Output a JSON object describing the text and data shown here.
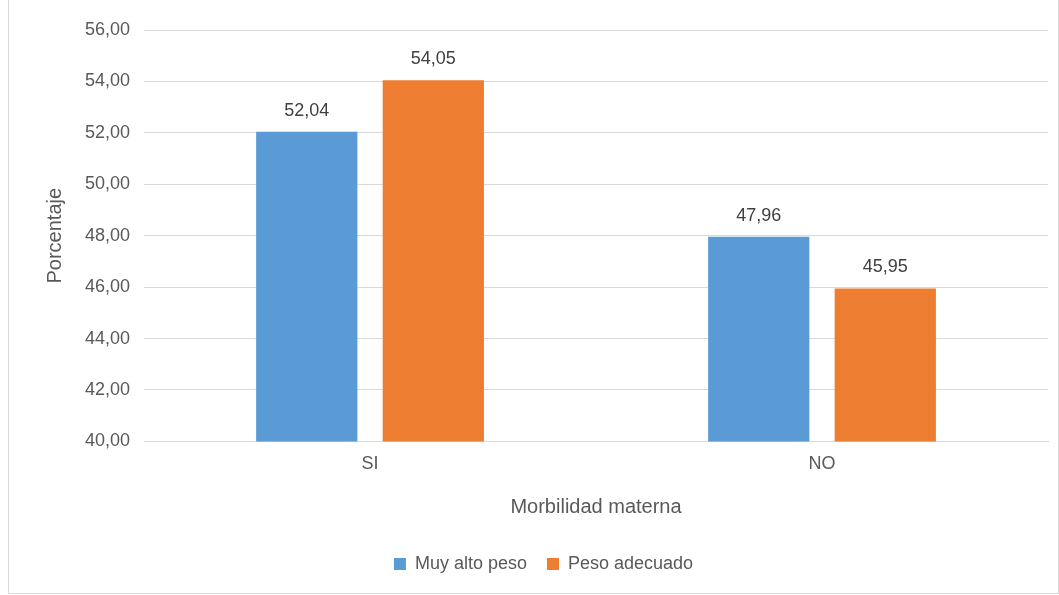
{
  "chart_data": {
    "type": "bar",
    "xlabel": "Morbilidad materna",
    "ylabel": "Porcentaje",
    "categories": [
      "SI",
      "NO"
    ],
    "series": [
      {
        "name": "Muy alto peso",
        "color": "#5b9bd5",
        "values": [
          52.04,
          47.96
        ],
        "value_labels": [
          "52,04",
          "47,96"
        ]
      },
      {
        "name": "Peso adecuado",
        "color": "#ed7d31",
        "values": [
          54.05,
          45.95
        ],
        "value_labels": [
          "54,05",
          "45,95"
        ]
      }
    ],
    "ylim": [
      40,
      56
    ],
    "yticks": [
      {
        "value": 40,
        "label": "40,00"
      },
      {
        "value": 42,
        "label": "42,00"
      },
      {
        "value": 44,
        "label": "44,00"
      },
      {
        "value": 46,
        "label": "46,00"
      },
      {
        "value": 48,
        "label": "48,00"
      },
      {
        "value": 50,
        "label": "50,00"
      },
      {
        "value": 52,
        "label": "52,00"
      },
      {
        "value": 54,
        "label": "54,00"
      },
      {
        "value": 56,
        "label": "56,00"
      }
    ],
    "grid": "y",
    "legend": "bottom"
  }
}
